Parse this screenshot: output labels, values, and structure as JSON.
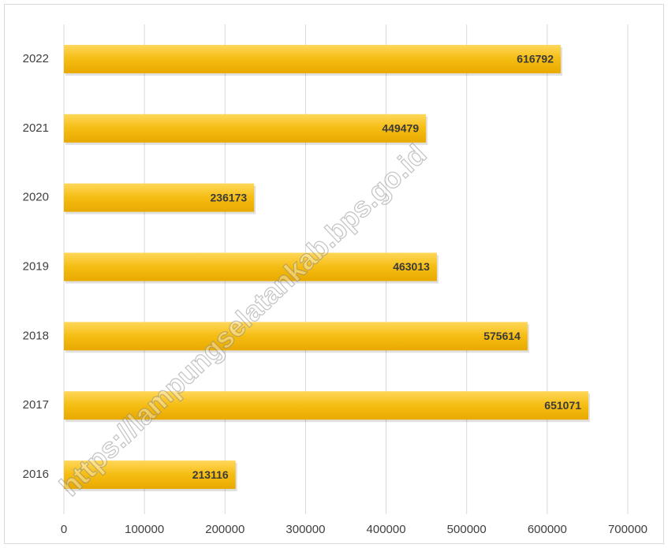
{
  "chart_data": {
    "type": "hbar",
    "categories": [
      "2016",
      "2017",
      "2018",
      "2019",
      "2020",
      "2021",
      "2022"
    ],
    "values": [
      213116,
      651071,
      575614,
      463013,
      236173,
      449479,
      616792
    ],
    "color": "#f2b600",
    "xlim": [
      0,
      700000
    ],
    "xticks": [
      0,
      100000,
      200000,
      300000,
      400000,
      500000,
      600000,
      700000
    ],
    "grid": true,
    "watermark": "https://lampungselatankab.bps.go.id"
  }
}
